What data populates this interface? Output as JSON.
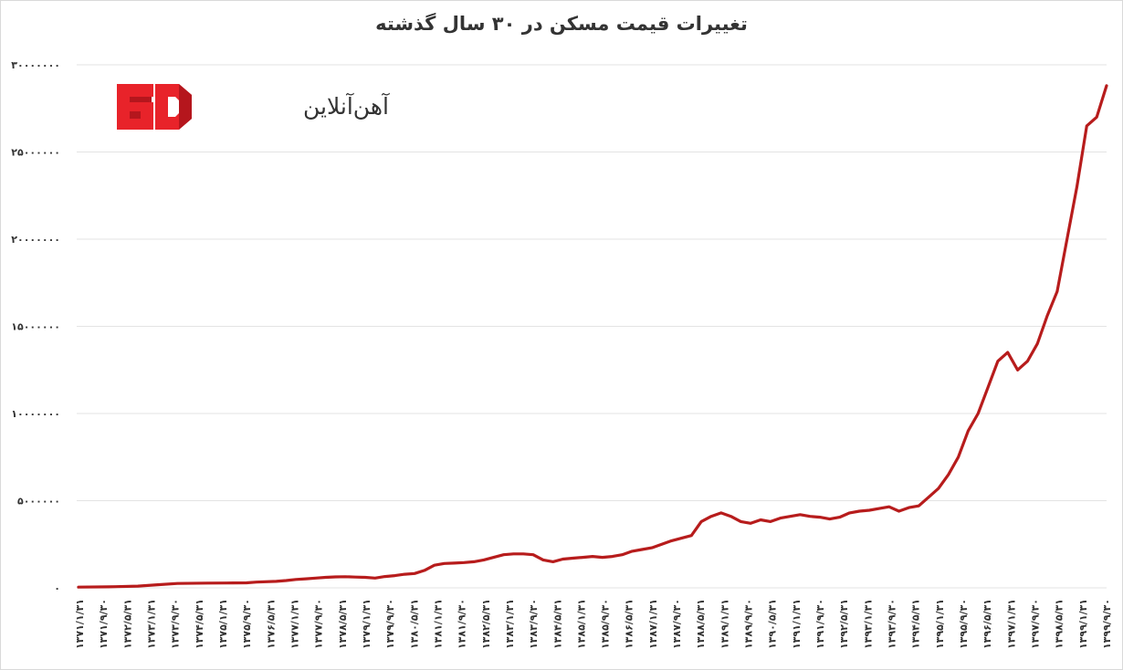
{
  "chart_data": {
    "type": "line",
    "title": "تغییرات قیمت مسکن در ۳۰ سال گذشته",
    "xlabel": "",
    "ylabel": "",
    "ylim": [
      0,
      30000000
    ],
    "yticks": [
      0,
      5000000,
      10000000,
      15000000,
      20000000,
      25000000,
      30000000
    ],
    "ytick_labels": [
      "۰",
      "۵۰۰۰۰۰۰",
      "۱۰۰۰۰۰۰۰",
      "۱۵۰۰۰۰۰۰",
      "۲۰۰۰۰۰۰۰",
      "۲۵۰۰۰۰۰۰",
      "۳۰۰۰۰۰۰۰"
    ],
    "grid": true,
    "legend": "none",
    "x_tick_labels": [
      "۱۳۷۱/۱/۳۱",
      "۱۳۷۱/۹/۳۰",
      "۱۳۷۲/۵/۳۱",
      "۱۳۷۳/۱/۳۱",
      "۱۳۷۳/۹/۳۰",
      "۱۳۷۴/۵/۳۱",
      "۱۳۷۵/۱/۳۱",
      "۱۳۷۵/۹/۳۰",
      "۱۳۷۶/۵/۳۱",
      "۱۳۷۷/۱/۳۱",
      "۱۳۷۷/۹/۳۰",
      "۱۳۷۸/۵/۳۱",
      "۱۳۷۹/۱/۳۱",
      "۱۳۷۹/۹/۳۰",
      "۱۳۸۰/۵/۳۱",
      "۱۳۸۱/۱/۳۱",
      "۱۳۸۱/۹/۳۰",
      "۱۳۸۲/۵/۳۱",
      "۱۳۸۳/۱/۳۱",
      "۱۳۸۳/۹/۳۰",
      "۱۳۸۴/۵/۳۱",
      "۱۳۸۵/۱/۳۱",
      "۱۳۸۵/۹/۳۰",
      "۱۳۸۶/۵/۳۱",
      "۱۳۸۷/۱/۳۱",
      "۱۳۸۷/۹/۳۰",
      "۱۳۸۸/۵/۳۱",
      "۱۳۸۹/۱/۳۱",
      "۱۳۸۹/۹/۳۰",
      "۱۳۹۰/۵/۳۱",
      "۱۳۹۱/۱/۳۱",
      "۱۳۹۱/۹/۳۰",
      "۱۳۹۲/۵/۳۱",
      "۱۳۹۳/۱/۳۱",
      "۱۳۹۳/۹/۳۰",
      "۱۳۹۴/۵/۳۱",
      "۱۳۹۵/۱/۳۱",
      "۱۳۹۵/۹/۳۰",
      "۱۳۹۶/۵/۳۱",
      "۱۳۹۷/۱/۳۱",
      "۱۳۹۷/۹/۳۰",
      "۱۳۹۸/۵/۳۱",
      "۱۳۹۹/۱/۳۱",
      "۱۳۹۹/۹/۳۰"
    ],
    "series": [
      {
        "color": "#b71c1c",
        "x": [
          0,
          1,
          2,
          3,
          4,
          5,
          6,
          7,
          8,
          9,
          10,
          11,
          12,
          13,
          14,
          15,
          16,
          17,
          18,
          19,
          20,
          21,
          22,
          23,
          24,
          25,
          26,
          27,
          28,
          29,
          30,
          31,
          32,
          33,
          34,
          35,
          36,
          37,
          38,
          39,
          40,
          41,
          42,
          43,
          44,
          45,
          46,
          47,
          48,
          49,
          50,
          51,
          52,
          53,
          54,
          55,
          56,
          57,
          58,
          59,
          60,
          61,
          62,
          63,
          64,
          65,
          66,
          67,
          68,
          69,
          70,
          71,
          72,
          73,
          74,
          75,
          76,
          77,
          78,
          79,
          80,
          81,
          82,
          83,
          84,
          85,
          86,
          87,
          88,
          89,
          90,
          91,
          92,
          93,
          94,
          95,
          96,
          97,
          98,
          99,
          100,
          101,
          102,
          103,
          104,
          105,
          106,
          107,
          108,
          109,
          110,
          111,
          112,
          113,
          114,
          115,
          116,
          117,
          118,
          119,
          120,
          121,
          122,
          123,
          124,
          125,
          126,
          127,
          128,
          129,
          130,
          131,
          132,
          133,
          134,
          135,
          136,
          137,
          138,
          139,
          140,
          141,
          142,
          143,
          144,
          145,
          146,
          147,
          148,
          149,
          150,
          151,
          152,
          153,
          154,
          155,
          156,
          157,
          158,
          159,
          160,
          161,
          162,
          163,
          164,
          165,
          166,
          167,
          168,
          169,
          170,
          171,
          172,
          173,
          174,
          175,
          176,
          177,
          178,
          179,
          180,
          181,
          182,
          183,
          184,
          185,
          186,
          187,
          188,
          189,
          190,
          191,
          192,
          193,
          194,
          195,
          196,
          197,
          198,
          199,
          200,
          201,
          202,
          203,
          204,
          205,
          206,
          207,
          208,
          209,
          210,
          211,
          212,
          213,
          214,
          215,
          216,
          217,
          218,
          219,
          220,
          221,
          222,
          223,
          224,
          225,
          226,
          227,
          228,
          229,
          230,
          231,
          232,
          233,
          234,
          235,
          236,
          237,
          238,
          239,
          240,
          241,
          242,
          243,
          244,
          245,
          246,
          247,
          248,
          249,
          250,
          251,
          252,
          253,
          254,
          255,
          256,
          257,
          258,
          259,
          260,
          261,
          262,
          263,
          264,
          265,
          266,
          267,
          268,
          269,
          270,
          271,
          272,
          273,
          274,
          275,
          276,
          277,
          278,
          279,
          280,
          281,
          282,
          283,
          284,
          285,
          286,
          287,
          288,
          289,
          290,
          291,
          292,
          293,
          294,
          295,
          296,
          297,
          298,
          299,
          300,
          301,
          302,
          303,
          304,
          305,
          306,
          307,
          308,
          309,
          310,
          311,
          312,
          313,
          314,
          315,
          316,
          317,
          318,
          319,
          320,
          321,
          322,
          323,
          324,
          325,
          326,
          327,
          328,
          329,
          330,
          331,
          332,
          333,
          334,
          335,
          336,
          337,
          338,
          339,
          340,
          341,
          342,
          343,
          344,
          345,
          346,
          347,
          348,
          349,
          350,
          351,
          352,
          353,
          354,
          355,
          356,
          357,
          358
        ],
        "y_keys": [
          [
            0,
            40000
          ],
          [
            30,
            60000
          ],
          [
            60,
            100000
          ],
          [
            80,
            180000
          ],
          [
            100,
            250000
          ],
          [
            130,
            270000
          ],
          [
            150,
            280000
          ],
          [
            170,
            290000
          ],
          [
            180,
            330000
          ],
          [
            200,
            370000
          ],
          [
            210,
            420000
          ],
          [
            220,
            480000
          ],
          [
            230,
            520000
          ],
          [
            240,
            560000
          ],
          [
            250,
            600000
          ],
          [
            260,
            630000
          ],
          [
            270,
            640000
          ],
          [
            280,
            620000
          ],
          [
            290,
            600000
          ],
          [
            300,
            560000
          ],
          [
            310,
            650000
          ],
          [
            320,
            700000
          ],
          [
            330,
            780000
          ],
          [
            340,
            820000
          ],
          [
            350,
            1000000
          ],
          [
            360,
            1300000
          ],
          [
            370,
            1400000
          ],
          [
            380,
            1420000
          ],
          [
            390,
            1450000
          ],
          [
            400,
            1500000
          ],
          [
            410,
            1600000
          ],
          [
            420,
            1750000
          ],
          [
            430,
            1900000
          ],
          [
            440,
            1950000
          ],
          [
            450,
            1950000
          ],
          [
            460,
            1900000
          ],
          [
            470,
            1600000
          ],
          [
            480,
            1500000
          ],
          [
            490,
            1650000
          ],
          [
            500,
            1700000
          ],
          [
            510,
            1750000
          ],
          [
            520,
            1800000
          ],
          [
            530,
            1750000
          ],
          [
            540,
            1800000
          ],
          [
            550,
            1900000
          ],
          [
            560,
            2100000
          ],
          [
            570,
            2200000
          ],
          [
            580,
            2300000
          ],
          [
            590,
            2500000
          ],
          [
            600,
            2700000
          ],
          [
            610,
            2850000
          ],
          [
            620,
            3000000
          ],
          [
            630,
            3800000
          ],
          [
            640,
            4100000
          ],
          [
            650,
            4300000
          ],
          [
            660,
            4100000
          ],
          [
            670,
            3800000
          ],
          [
            680,
            3700000
          ],
          [
            690,
            3900000
          ],
          [
            700,
            3800000
          ],
          [
            710,
            4000000
          ],
          [
            720,
            4100000
          ],
          [
            730,
            4200000
          ],
          [
            740,
            4100000
          ],
          [
            750,
            4050000
          ],
          [
            760,
            3950000
          ],
          [
            770,
            4050000
          ],
          [
            780,
            4300000
          ],
          [
            790,
            4400000
          ],
          [
            800,
            4450000
          ],
          [
            810,
            4550000
          ],
          [
            820,
            4650000
          ],
          [
            830,
            4400000
          ],
          [
            840,
            4600000
          ],
          [
            850,
            4700000
          ],
          [
            860,
            5200000
          ],
          [
            870,
            5700000
          ],
          [
            880,
            6500000
          ],
          [
            890,
            7500000
          ],
          [
            900,
            9000000
          ],
          [
            910,
            10000000
          ],
          [
            920,
            11500000
          ],
          [
            930,
            13000000
          ],
          [
            940,
            13500000
          ],
          [
            950,
            12500000
          ],
          [
            960,
            13000000
          ],
          [
            970,
            14000000
          ],
          [
            980,
            15600000
          ],
          [
            990,
            17000000
          ],
          [
            1000,
            20000000
          ],
          [
            1010,
            23000000
          ],
          [
            1020,
            26500000
          ],
          [
            1030,
            27000000
          ],
          [
            1040,
            28800000
          ]
        ]
      }
    ]
  },
  "brand": {
    "name": "آهن‌آنلاین",
    "logo_text": "aD",
    "colors": {
      "primary": "#e8232a",
      "secondary": "#b5161d"
    }
  }
}
